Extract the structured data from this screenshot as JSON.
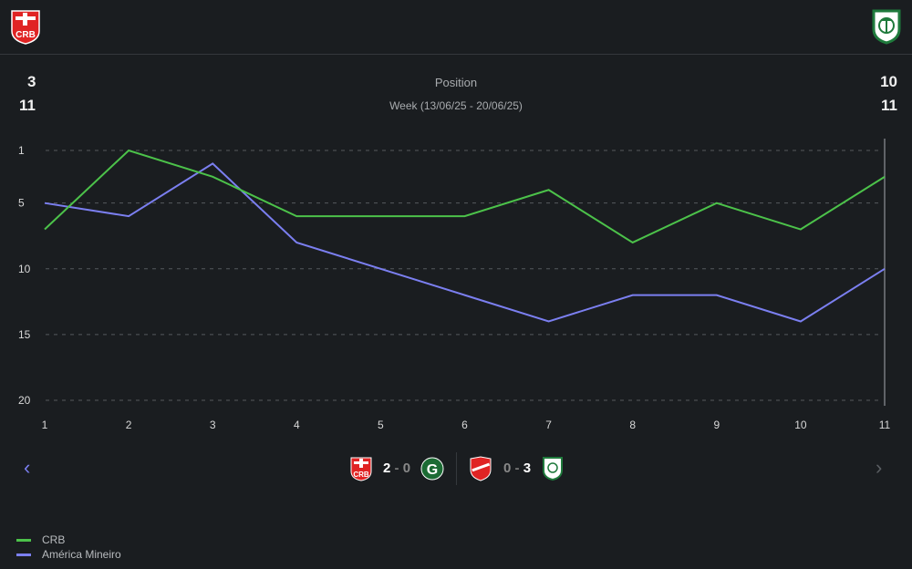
{
  "header": {
    "home_team": "CRB",
    "away_team": "América Mineiro",
    "home_position": "3",
    "home_week": "11",
    "away_position": "10",
    "away_week": "11"
  },
  "chart_data": {
    "type": "line",
    "title": "Position",
    "subtitle": "Week (13/06/25 - 20/06/25)",
    "x": [
      1,
      2,
      3,
      4,
      5,
      6,
      7,
      8,
      9,
      10,
      11
    ],
    "yticks": [
      1,
      5,
      10,
      15,
      20
    ],
    "ylim": [
      1,
      20
    ],
    "y_inverted": true,
    "grid": true,
    "series": [
      {
        "name": "CRB",
        "color": "#4cc24a",
        "values": [
          7,
          1,
          3,
          6,
          6,
          6,
          4,
          8,
          5,
          7,
          3
        ]
      },
      {
        "name": "América Mineiro",
        "color": "#7b7ff0",
        "values": [
          5,
          6,
          2,
          8,
          10,
          12,
          14,
          12,
          12,
          14,
          10
        ]
      }
    ],
    "legend_placement": "bottom-left"
  },
  "matches": [
    {
      "home_score": "2",
      "away_score": "0",
      "home": "CRB",
      "away": "Goiás"
    },
    {
      "home_score": "0",
      "away_score": "3",
      "home": "Vila Nova",
      "away": "América Mineiro"
    }
  ],
  "nav": {
    "prev": "‹",
    "next": "›"
  }
}
